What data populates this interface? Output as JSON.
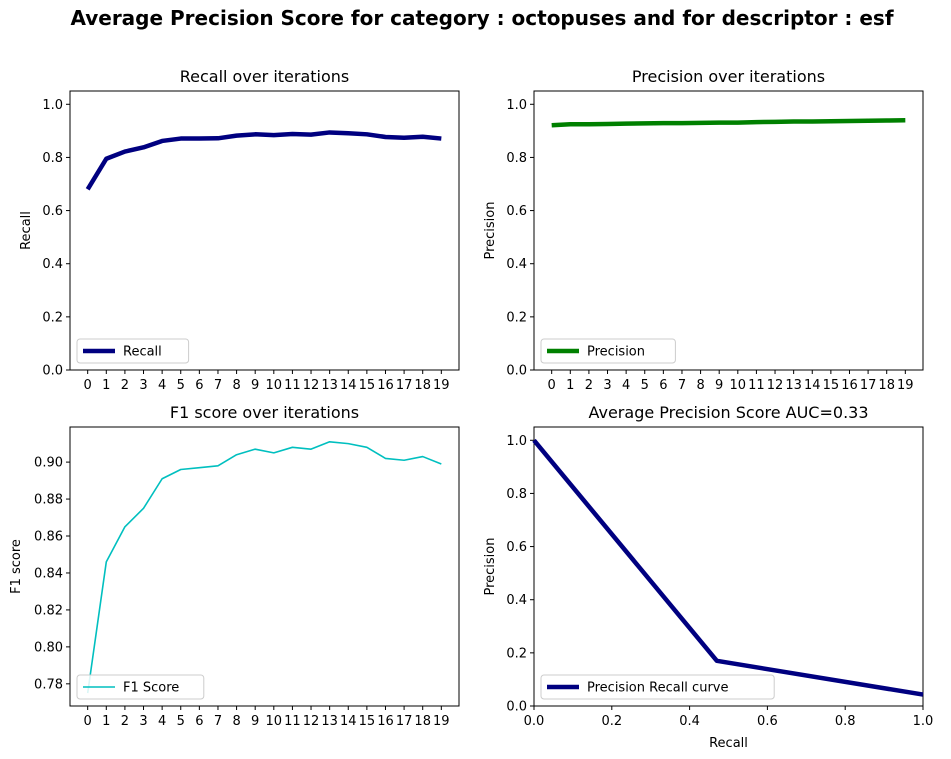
{
  "figure": {
    "suptitle": "Average Precision Score for category : octopuses and for descriptor : esf"
  },
  "chart_data": [
    {
      "type": "line",
      "title": "Recall over iterations",
      "xlabel": "",
      "ylabel": "Recall",
      "x": [
        0,
        1,
        2,
        3,
        4,
        5,
        6,
        7,
        8,
        9,
        10,
        11,
        12,
        13,
        14,
        15,
        16,
        17,
        18,
        19
      ],
      "xticks": [
        0,
        1,
        2,
        3,
        4,
        5,
        6,
        7,
        8,
        9,
        10,
        11,
        12,
        13,
        14,
        15,
        16,
        17,
        18,
        19
      ],
      "ylim": [
        0,
        1.05
      ],
      "yticks": [
        0.0,
        0.2,
        0.4,
        0.6,
        0.8,
        1.0
      ],
      "legend_loc": "lower-left",
      "series": [
        {
          "name": "Recall",
          "color": "#000080",
          "linewidth": "thick",
          "values": [
            0.68,
            0.795,
            0.822,
            0.838,
            0.862,
            0.871,
            0.871,
            0.872,
            0.882,
            0.887,
            0.884,
            0.888,
            0.886,
            0.894,
            0.891,
            0.887,
            0.877,
            0.874,
            0.878,
            0.871
          ]
        }
      ]
    },
    {
      "type": "line",
      "title": "Precision over iterations",
      "xlabel": "",
      "ylabel": "Precision",
      "x": [
        0,
        1,
        2,
        3,
        4,
        5,
        6,
        7,
        8,
        9,
        10,
        11,
        12,
        13,
        14,
        15,
        16,
        17,
        18,
        19
      ],
      "xticks": [
        0,
        1,
        2,
        3,
        4,
        5,
        6,
        7,
        8,
        9,
        10,
        11,
        12,
        13,
        14,
        15,
        16,
        17,
        18,
        19
      ],
      "ylim": [
        0,
        1.05
      ],
      "yticks": [
        0.0,
        0.2,
        0.4,
        0.6,
        0.8,
        1.0
      ],
      "legend_loc": "lower-left",
      "series": [
        {
          "name": "Precision",
          "color": "#008000",
          "linewidth": "thick",
          "values": [
            0.921,
            0.925,
            0.925,
            0.926,
            0.927,
            0.928,
            0.929,
            0.929,
            0.93,
            0.931,
            0.931,
            0.933,
            0.934,
            0.935,
            0.935,
            0.936,
            0.937,
            0.938,
            0.939,
            0.94
          ]
        }
      ]
    },
    {
      "type": "line",
      "title": "F1 score over iterations",
      "xlabel": "",
      "ylabel": "F1 score",
      "x": [
        0,
        1,
        2,
        3,
        4,
        5,
        6,
        7,
        8,
        9,
        10,
        11,
        12,
        13,
        14,
        15,
        16,
        17,
        18,
        19
      ],
      "xticks": [
        0,
        1,
        2,
        3,
        4,
        5,
        6,
        7,
        8,
        9,
        10,
        11,
        12,
        13,
        14,
        15,
        16,
        17,
        18,
        19
      ],
      "ylim": [
        0.768,
        0.919
      ],
      "yticks": [
        0.78,
        0.8,
        0.82,
        0.84,
        0.86,
        0.88,
        0.9
      ],
      "legend_loc": "lower-left",
      "series": [
        {
          "name": "F1 Score",
          "color": "#00bfbf",
          "linewidth": "thin",
          "values": [
            0.775,
            0.846,
            0.865,
            0.875,
            0.891,
            0.896,
            0.897,
            0.898,
            0.904,
            0.907,
            0.905,
            0.908,
            0.907,
            0.911,
            0.91,
            0.908,
            0.902,
            0.901,
            0.903,
            0.899
          ]
        }
      ]
    },
    {
      "type": "line",
      "title": "Average Precision Score AUC=0.33",
      "xlabel": "Recall",
      "ylabel": "Precision",
      "xlim": [
        0.0,
        1.0
      ],
      "xticks": [
        0.0,
        0.2,
        0.4,
        0.6,
        0.8,
        1.0
      ],
      "ylim": [
        0.0,
        1.05
      ],
      "yticks": [
        0.0,
        0.2,
        0.4,
        0.6,
        0.8,
        1.0
      ],
      "legend_loc": "lower-left",
      "series": [
        {
          "name": "Precision Recall curve",
          "color": "#000080",
          "linewidth": "thick",
          "x": [
            0.0,
            0.47,
            1.0
          ],
          "values": [
            1.0,
            0.17,
            0.043
          ]
        }
      ]
    }
  ]
}
